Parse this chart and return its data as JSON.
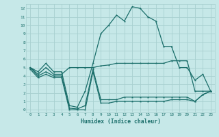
{
  "xlabel": "Humidex (Indice chaleur)",
  "background_color": "#c6e8e8",
  "grid_color": "#a8d0d0",
  "line_color": "#1a6e6a",
  "xticks": [
    0,
    1,
    2,
    3,
    4,
    5,
    6,
    7,
    8,
    9,
    10,
    11,
    12,
    13,
    14,
    15,
    16,
    17,
    18,
    19,
    20,
    21,
    22,
    23
  ],
  "yticks": [
    0,
    1,
    2,
    3,
    4,
    5,
    6,
    7,
    8,
    9,
    10,
    11,
    12
  ],
  "hours": [
    0,
    1,
    2,
    3,
    4,
    5,
    6,
    7,
    8,
    9,
    10,
    11,
    12,
    13,
    14,
    15,
    16,
    17,
    18,
    19,
    20,
    21,
    22,
    23
  ],
  "curve1": [
    5.0,
    4.5,
    5.5,
    4.5,
    4.5,
    0.5,
    0.3,
    2.2,
    5.5,
    9.0,
    10.0,
    11.2,
    10.5,
    12.2,
    12.0,
    11.0,
    10.5,
    7.5,
    7.5,
    5.0,
    5.0,
    3.5,
    4.2,
    2.2
  ],
  "curve2": [
    5.0,
    4.2,
    5.0,
    4.2,
    4.2,
    5.0,
    5.0,
    5.0,
    5.0,
    5.2,
    5.3,
    5.5,
    5.5,
    5.5,
    5.5,
    5.5,
    5.5,
    5.5,
    5.8,
    5.8,
    5.8,
    2.2,
    2.2,
    2.2
  ],
  "curve3": [
    5.0,
    4.0,
    4.5,
    4.0,
    4.0,
    0.2,
    0.1,
    0.5,
    4.8,
    1.2,
    1.2,
    1.2,
    1.5,
    1.5,
    1.5,
    1.5,
    1.5,
    1.5,
    1.5,
    1.5,
    1.5,
    1.0,
    1.8,
    2.2
  ],
  "curve4": [
    4.8,
    3.8,
    4.2,
    3.8,
    3.8,
    0.0,
    0.0,
    0.0,
    4.5,
    0.8,
    0.8,
    1.0,
    1.0,
    1.0,
    1.0,
    1.0,
    1.0,
    1.0,
    1.2,
    1.2,
    1.2,
    1.0,
    1.8,
    2.2
  ]
}
